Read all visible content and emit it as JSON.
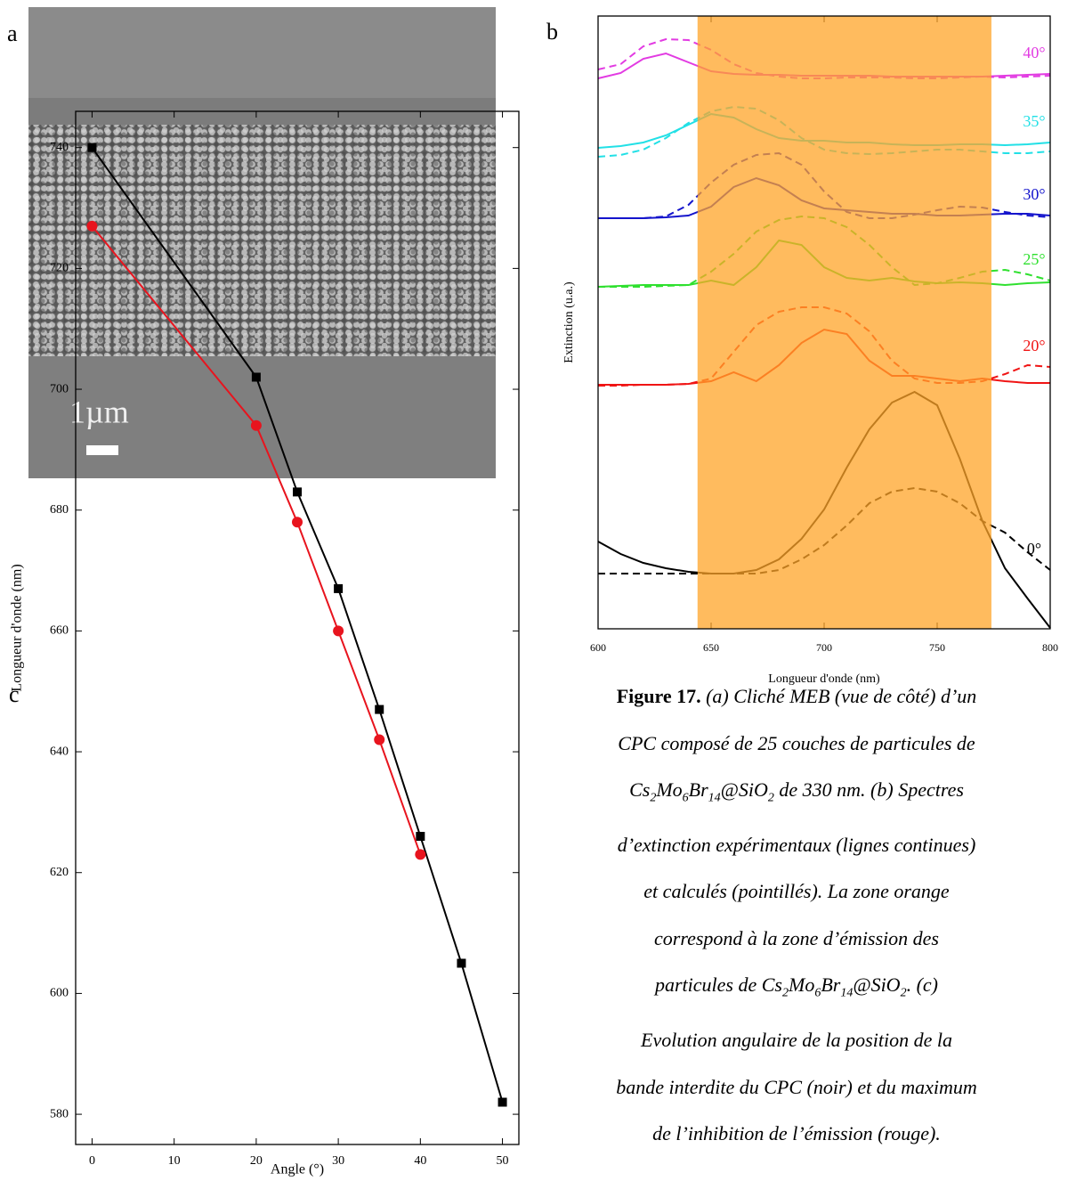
{
  "panel_a": {
    "label": "a",
    "scale_bar_label": "1µm"
  },
  "chart_data": [
    {
      "type": "line",
      "label": "b",
      "xlabel": "Longueur d'onde (nm)",
      "ylabel": "Extinction (u.a.)",
      "x": [
        600,
        610,
        620,
        630,
        640,
        650,
        660,
        670,
        680,
        690,
        700,
        710,
        720,
        730,
        740,
        750,
        760,
        770,
        780,
        790,
        800
      ],
      "xlim": [
        600,
        800
      ],
      "xticks": [
        600,
        650,
        700,
        750,
        800
      ],
      "ylim": [
        0,
        688
      ],
      "band": {
        "range": [
          644,
          774
        ],
        "color": "#ffa428"
      },
      "series": [
        {
          "name": "40°",
          "color": "#e23be2",
          "values": [
            618,
            624,
            640,
            646,
            636,
            626,
            623,
            622,
            622,
            621,
            621,
            621,
            621,
            620,
            620,
            620,
            620,
            620,
            621,
            622,
            623
          ],
          "calc_values": [
            628,
            634,
            654,
            662,
            661,
            650,
            634,
            624,
            620,
            618,
            618,
            619,
            619,
            619,
            618,
            618,
            619,
            620,
            619,
            620,
            621
          ]
        },
        {
          "name": "35°",
          "color": "#22e0e6",
          "values": [
            540,
            542,
            546,
            554,
            566,
            578,
            574,
            561,
            551,
            548,
            548,
            546,
            546,
            544,
            543,
            543,
            544,
            544,
            543,
            544,
            546
          ],
          "calc_values": [
            530,
            532,
            538,
            551,
            568,
            581,
            586,
            584,
            571,
            551,
            538,
            534,
            533,
            534,
            536,
            538,
            538,
            536,
            534,
            534,
            536
          ]
        },
        {
          "name": "30°",
          "color": "#1414cc",
          "values": [
            461,
            461,
            461,
            462,
            464,
            474,
            496,
            506,
            498,
            481,
            472,
            470,
            468,
            466,
            466,
            464,
            464,
            465,
            466,
            466,
            464
          ],
          "calc_values": [
            461,
            461,
            461,
            463,
            476,
            501,
            521,
            532,
            534,
            521,
            491,
            468,
            461,
            461,
            465,
            470,
            474,
            473,
            468,
            464,
            462
          ]
        },
        {
          "name": "25°",
          "color": "#2fe02f",
          "values": [
            384,
            385,
            386,
            386,
            386,
            391,
            386,
            406,
            436,
            431,
            406,
            394,
            391,
            394,
            390,
            388,
            389,
            388,
            386,
            388,
            389
          ],
          "calc_values": [
            384,
            384,
            384,
            385,
            386,
            401,
            421,
            446,
            459,
            463,
            461,
            451,
            431,
            406,
            386,
            388,
            394,
            401,
            403,
            398,
            391
          ]
        },
        {
          "name": "20°",
          "color": "#f01414",
          "values": [
            274,
            274,
            274,
            274,
            275,
            278,
            288,
            278,
            296,
            321,
            336,
            331,
            301,
            284,
            284,
            281,
            278,
            281,
            278,
            276,
            276
          ],
          "calc_values": [
            273,
            273,
            274,
            274,
            275,
            281,
            311,
            341,
            356,
            361,
            361,
            354,
            334,
            301,
            281,
            276,
            276,
            278,
            286,
            296,
            294
          ]
        },
        {
          "name": "0°",
          "color": "#000000",
          "values": [
            98,
            84,
            74,
            68,
            64,
            62,
            62,
            66,
            78,
            101,
            134,
            181,
            224,
            254,
            266,
            251,
            191,
            121,
            68,
            34,
            1
          ],
          "calc_values": [
            62,
            62,
            62,
            62,
            62,
            62,
            62,
            62,
            66,
            78,
            94,
            116,
            141,
            154,
            158,
            154,
            141,
            121,
            108,
            86,
            66
          ]
        }
      ]
    },
    {
      "type": "line",
      "label": "c",
      "xlabel": "Angle (°)",
      "ylabel": "Longueur d'onde (nm)",
      "x": [
        0,
        20,
        25,
        30,
        35,
        40,
        45,
        50
      ],
      "xlim": [
        -2,
        52
      ],
      "xticks": [
        0,
        10,
        20,
        30,
        40,
        50
      ],
      "ylim": [
        575,
        746
      ],
      "yticks": [
        580,
        600,
        620,
        640,
        660,
        680,
        700,
        720,
        740
      ],
      "series": [
        {
          "color": "#000000",
          "marker": "square",
          "values": [
            740,
            702,
            683,
            667,
            647,
            626,
            605,
            582
          ]
        },
        {
          "color": "#e8141e",
          "marker": "circle",
          "values": [
            727,
            694,
            678,
            660,
            642,
            623,
            null,
            null
          ]
        }
      ]
    }
  ],
  "caption": {
    "lines": [
      [
        {
          "bold": "Figure 17."
        },
        " (a) Cliché MEB (vue de côté) d’un"
      ],
      [
        "CPC composé de 25 couches de particules de"
      ],
      [
        "Cs",
        {
          "sub": "2"
        },
        "Mo",
        {
          "sub": "6"
        },
        "Br",
        {
          "sub": "14"
        },
        "@SiO",
        {
          "sub": "2"
        },
        " de 330 nm. (b) Spectres"
      ],
      [
        "d’extinction expérimentaux (lignes continues)"
      ],
      [
        "et calculés (pointillés). La zone orange"
      ],
      [
        "correspond à la zone d’émission des"
      ],
      [
        "particules de Cs",
        {
          "sub": "2"
        },
        "Mo",
        {
          "sub": "6"
        },
        "Br",
        {
          "sub": "14"
        },
        "@SiO",
        {
          "sub": "2"
        },
        ". (c)"
      ],
      [
        "Evolution angulaire de la position de la"
      ],
      [
        "bande interdite du CPC (noir) et du maximum"
      ],
      [
        "de l’inhibition de l’émission (rouge)."
      ]
    ]
  }
}
